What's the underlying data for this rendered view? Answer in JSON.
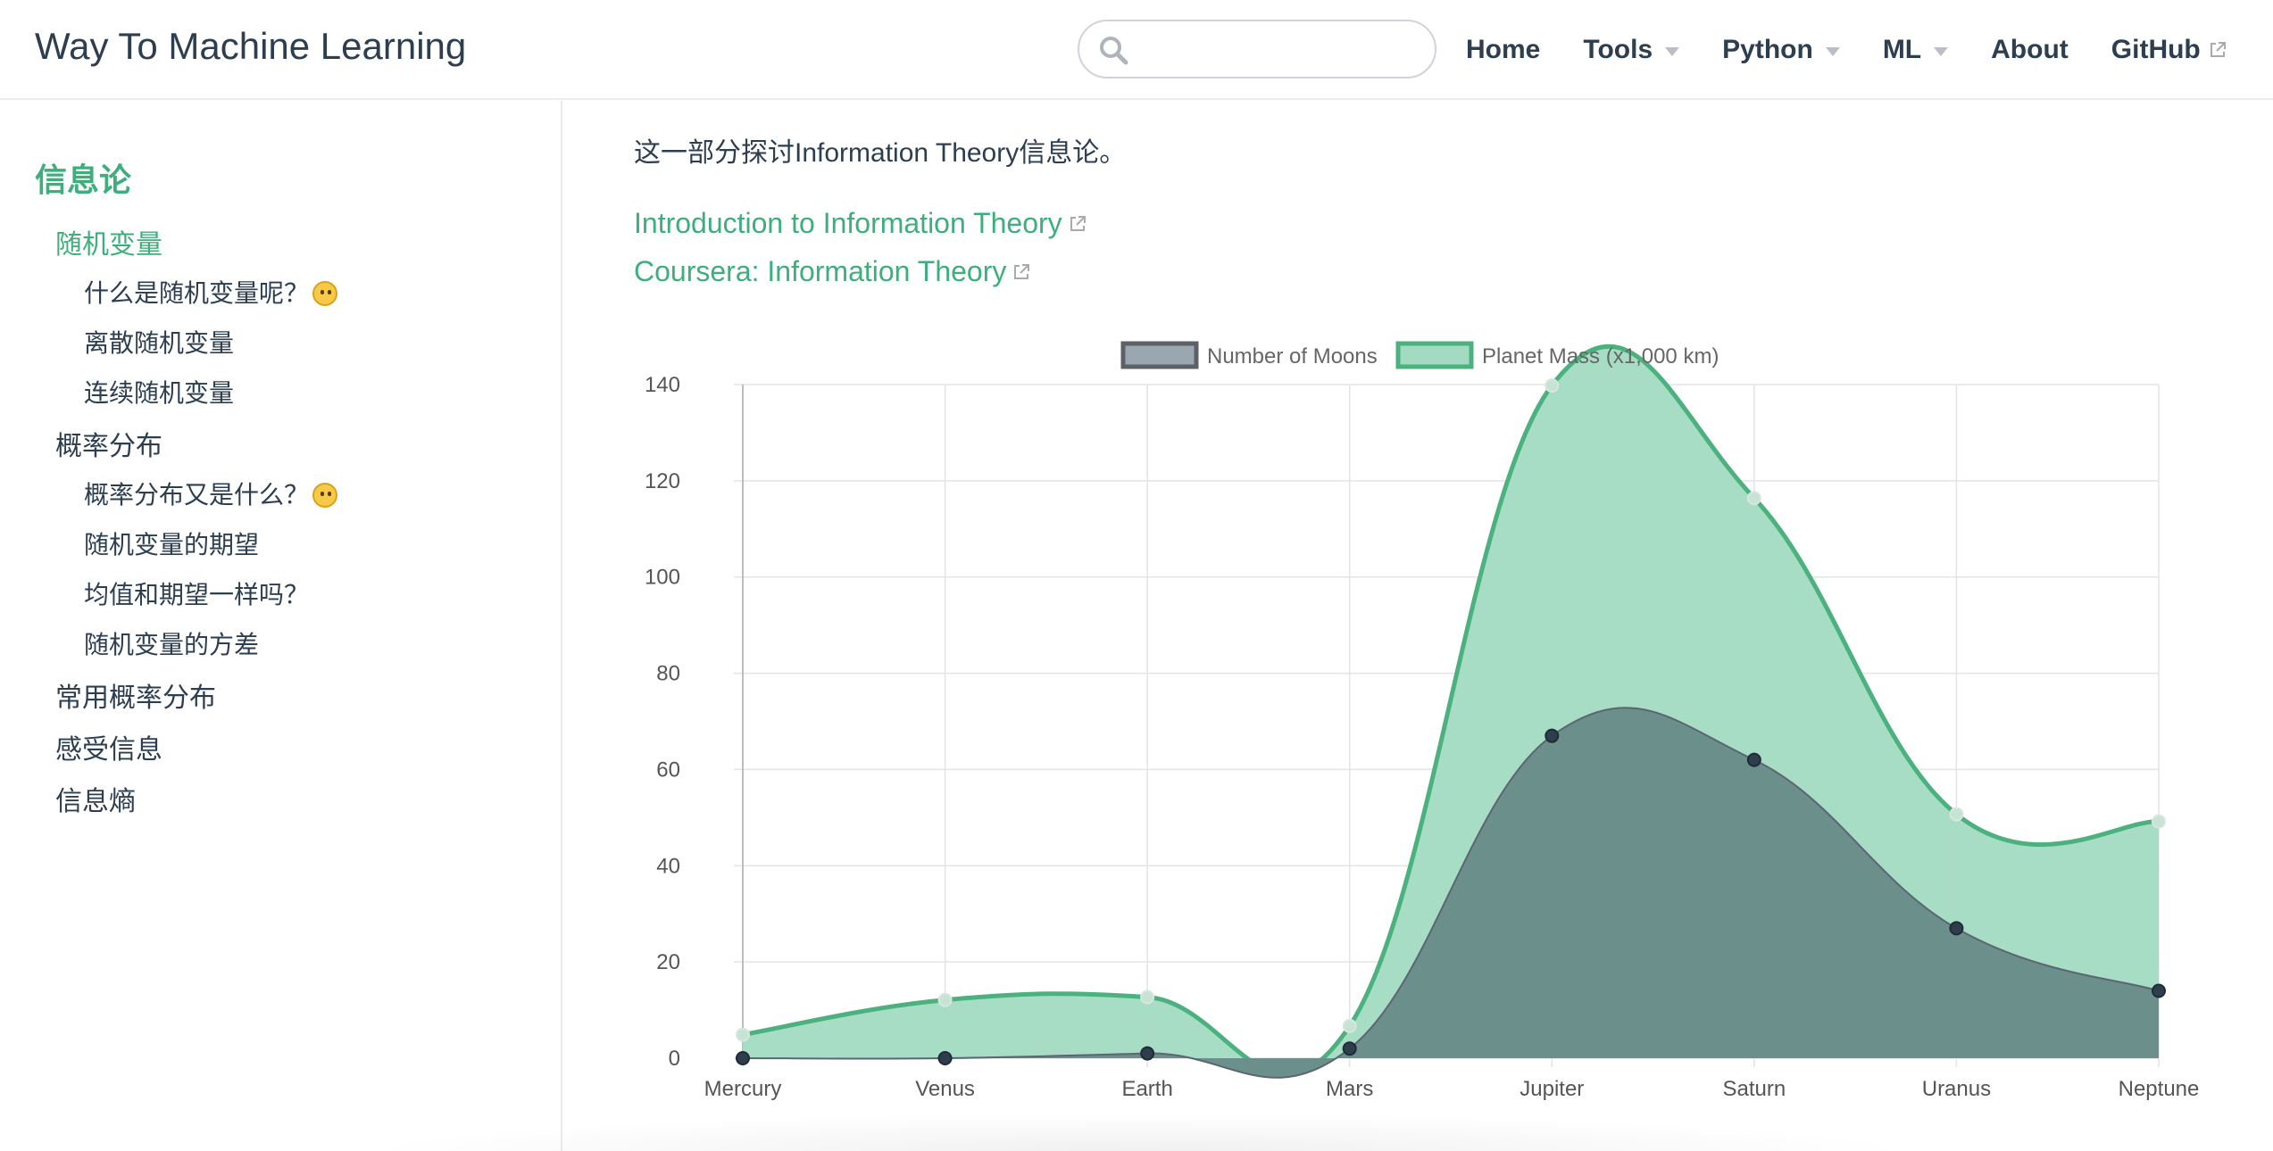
{
  "header": {
    "site_name": "Way To Machine Learning",
    "search": {
      "placeholder": "",
      "value": ""
    },
    "nav": [
      {
        "label": "Home",
        "dropdown": false,
        "external": false
      },
      {
        "label": "Tools",
        "dropdown": true,
        "external": false
      },
      {
        "label": "Python",
        "dropdown": true,
        "external": false
      },
      {
        "label": "ML",
        "dropdown": true,
        "external": false
      },
      {
        "label": "About",
        "dropdown": false,
        "external": false
      },
      {
        "label": "GitHub",
        "dropdown": false,
        "external": true
      }
    ]
  },
  "sidebar": {
    "heading": "信息论",
    "items": [
      {
        "label": "随机变量",
        "level": 1,
        "active": true
      },
      {
        "label": "什么是随机变量呢？",
        "level": 2,
        "emoji": "thinking-face"
      },
      {
        "label": "离散随机变量",
        "level": 2
      },
      {
        "label": "连续随机变量",
        "level": 2
      },
      {
        "label": "概率分布",
        "level": 1
      },
      {
        "label": "概率分布又是什么？",
        "level": 2,
        "emoji": "thinking-face"
      },
      {
        "label": "随机变量的期望",
        "level": 2
      },
      {
        "label": "均值和期望一样吗？",
        "level": 2
      },
      {
        "label": "随机变量的方差",
        "level": 2
      },
      {
        "label": "常用概率分布",
        "level": 1
      },
      {
        "label": "感受信息",
        "level": 1
      },
      {
        "label": "信息熵",
        "level": 1
      }
    ]
  },
  "content": {
    "intro": "这一部分探讨Information Theory信息论。",
    "links": [
      {
        "label": "Introduction to Information Theory",
        "external": true
      },
      {
        "label": "Coursera: Information Theory",
        "external": true
      }
    ]
  },
  "colors": {
    "accent": "#3eaf7c",
    "text": "#2c3e50",
    "moons_fill": "#6b8f8a",
    "moons_line": "#5c6570",
    "mass_fill": "#a3dbc2",
    "mass_line": "#4bb27f"
  },
  "chart_data": {
    "type": "area",
    "title": "",
    "xlabel": "",
    "ylabel": "",
    "categories": [
      "Mercury",
      "Venus",
      "Earth",
      "Mars",
      "Jupiter",
      "Saturn",
      "Uranus",
      "Neptune"
    ],
    "series": [
      {
        "name": "Number of Moons",
        "values": [
          0,
          0,
          1,
          2,
          67,
          62,
          27,
          14
        ]
      },
      {
        "name": "Planet Mass (x1,000 km)",
        "values": [
          4.9,
          12.1,
          12.7,
          6.7,
          139.8,
          116.4,
          50.7,
          49.2
        ]
      }
    ],
    "ylim": [
      0,
      140
    ],
    "yticks": [
      0,
      20,
      40,
      60,
      80,
      100,
      120,
      140
    ],
    "grid": true,
    "legend": "top-center"
  }
}
